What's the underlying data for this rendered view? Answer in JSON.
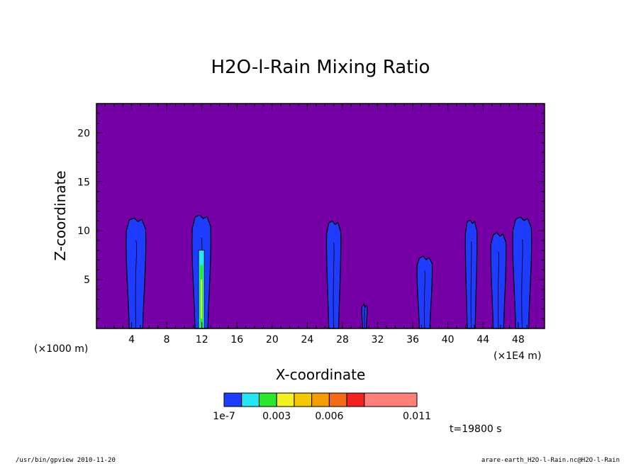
{
  "chart_data": {
    "type": "heatmap",
    "title": "H2O-l-Rain Mixing Ratio",
    "xlabel": "X-coordinate",
    "ylabel": "Z-coordinate",
    "x_unit_left": "(×1000 m)",
    "x_unit_right": "(×1E4 m)",
    "xlim": [
      0,
      51
    ],
    "ylim": [
      0,
      23
    ],
    "x_ticks": [
      4,
      8,
      12,
      16,
      20,
      24,
      28,
      32,
      36,
      40,
      44,
      48
    ],
    "y_ticks": [
      5,
      10,
      15,
      20
    ],
    "background_color": "#7400a6",
    "colorbar": {
      "colors": [
        "#1e3cff",
        "#25e6f5",
        "#2ce82c",
        "#f2f220",
        "#f5c800",
        "#f59c00",
        "#f56a14",
        "#f52020",
        "#ff7f7a"
      ],
      "labels": [
        {
          "text": "1e-7",
          "at": 0
        },
        {
          "text": "0.003",
          "at": 3
        },
        {
          "text": "0.006",
          "at": 6
        },
        {
          "text": "0.011",
          "at": 11
        }
      ],
      "max": 11
    },
    "cells": [
      {
        "x_left": 3.4,
        "x_right": 5.6,
        "top": 11.3,
        "bottom": 0,
        "core": false
      },
      {
        "x_left": 10.9,
        "x_right": 13.0,
        "top": 11.6,
        "bottom": 0,
        "core": true
      },
      {
        "x_left": 26.2,
        "x_right": 27.8,
        "top": 11.0,
        "bottom": 0,
        "core": false
      },
      {
        "x_left": 30.2,
        "x_right": 30.8,
        "top": 2.5,
        "bottom": 0,
        "core": false
      },
      {
        "x_left": 36.5,
        "x_right": 38.2,
        "top": 7.4,
        "bottom": 0,
        "core": false
      },
      {
        "x_left": 42.0,
        "x_right": 43.3,
        "top": 11.1,
        "bottom": 0,
        "core": false
      },
      {
        "x_left": 44.9,
        "x_right": 46.6,
        "top": 9.8,
        "bottom": 0,
        "core": false
      },
      {
        "x_left": 47.4,
        "x_right": 49.5,
        "top": 11.4,
        "bottom": 0,
        "core": false
      }
    ]
  },
  "annotations": {
    "time": "t=19800 s",
    "footer_left": "/usr/bin/gpview  2010-11-20",
    "footer_right": "arare-earth_H2O-l-Rain.nc@H2O-l-Rain"
  }
}
